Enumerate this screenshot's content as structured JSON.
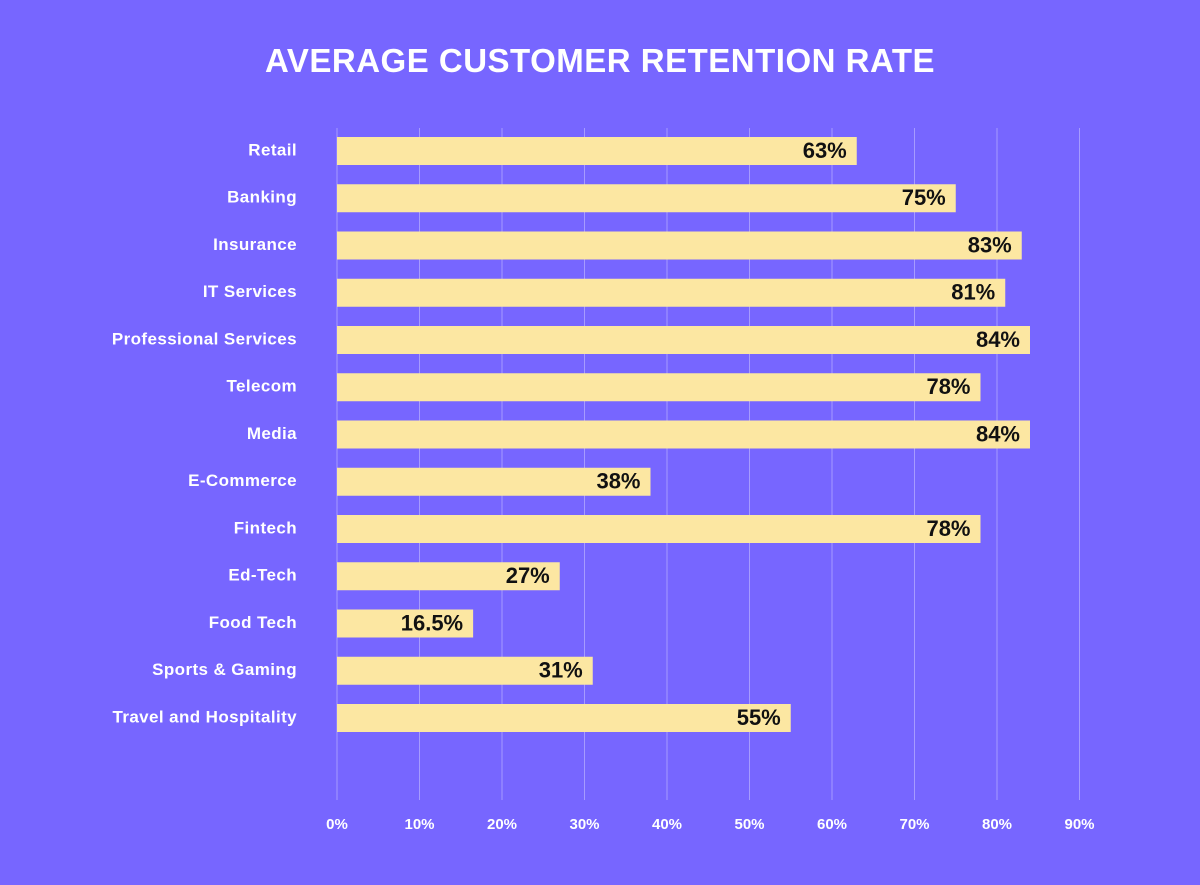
{
  "chart_data": {
    "type": "bar",
    "orientation": "horizontal",
    "title": "AVERAGE CUSTOMER RETENTION RATE",
    "xlabel": "",
    "ylabel": "",
    "xlim": [
      0,
      90
    ],
    "x_ticks": [
      "0%",
      "10%",
      "20%",
      "30%",
      "40%",
      "50%",
      "60%",
      "70%",
      "80%",
      "90%"
    ],
    "grid": "vertical",
    "categories": [
      "Retail",
      "Banking",
      "Insurance",
      "IT Services",
      "Professional Services",
      "Telecom",
      "Media",
      "E-Commerce",
      "Fintech",
      "Ed-Tech",
      "Food Tech",
      "Sports & Gaming",
      "Travel and Hospitality"
    ],
    "values": [
      63,
      75,
      83,
      81,
      84,
      78,
      84,
      38,
      78,
      27,
      16.5,
      31,
      55
    ],
    "value_labels": [
      "63%",
      "75%",
      "83%",
      "81%",
      "84%",
      "78%",
      "84%",
      "38%",
      "78%",
      "27%",
      "16.5%",
      "31%",
      "55%"
    ],
    "colors": {
      "background": "#7766FF",
      "bar": "#FCE7A2",
      "gridline": "#A69BFF",
      "text": "#FFFFFF",
      "value_text": "#111111"
    }
  }
}
